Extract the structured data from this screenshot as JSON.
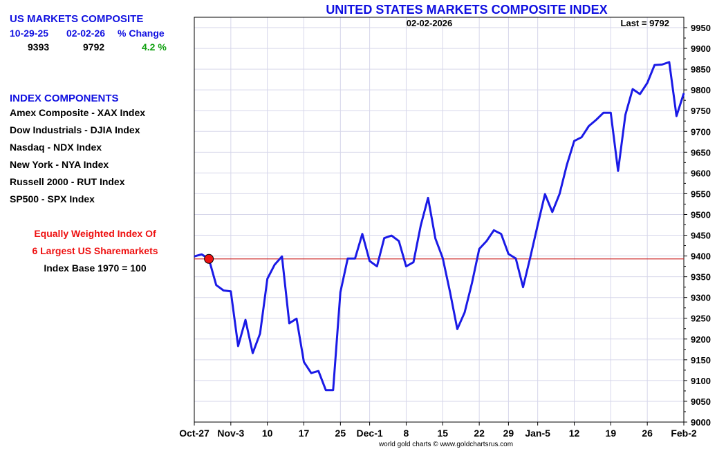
{
  "sidebar": {
    "title": "US MARKETS COMPOSITE",
    "columns": [
      "10-29-25",
      "02-02-26",
      "% Change"
    ],
    "values": [
      "9393",
      "9792",
      "4.2 %"
    ],
    "components_title": "INDEX COMPONENTS",
    "components": [
      "Amex Composite - XAX Index",
      "Dow Industrials - DJIA Index",
      "Nasdaq - NDX Index",
      "New York - NYA Index",
      "Russell 2000 - RUT Index",
      "SP500 - SPX Index"
    ],
    "note_line1": "Equally Weighted Index Of",
    "note_line2": "6 Largest US Sharemarkets",
    "note_line3": "Index Base 1970 = 100"
  },
  "colors": {
    "title_blue": "#1010e0",
    "line_blue": "#1a1ae6",
    "baseline_red": "#cc2222",
    "marker_red": "#ee1111",
    "change_green": "#10a010",
    "grid": "#d6d6ea"
  },
  "chart_data": {
    "type": "line",
    "title": "UNITED STATES MARKETS COMPOSITE INDEX",
    "date_label": "02-02-2026",
    "last_label": "Last = 9792",
    "credit": "world gold charts © www.goldchartsrus.com",
    "ylim": [
      9000,
      9975
    ],
    "y_ticks": [
      9000,
      9050,
      9100,
      9150,
      9200,
      9250,
      9300,
      9350,
      9400,
      9450,
      9500,
      9550,
      9600,
      9650,
      9700,
      9750,
      9800,
      9850,
      9900,
      9950
    ],
    "x_tick_labels": [
      "Oct-27",
      "Nov-3",
      "10",
      "17",
      "25",
      "Dec-1",
      "8",
      "15",
      "22",
      "29",
      "Jan-5",
      "12",
      "19",
      "26",
      "Feb-2"
    ],
    "x_tick_index": [
      0,
      5,
      10,
      15,
      20,
      24,
      29,
      34,
      39,
      43,
      47,
      52,
      57,
      62,
      67
    ],
    "grid": true,
    "baseline_value": 9393,
    "baseline_marker_index": 2,
    "values": [
      9399,
      9404,
      9393,
      9330,
      9317,
      9315,
      9183,
      9246,
      9166,
      9213,
      9345,
      9379,
      9399,
      9238,
      9249,
      9145,
      9118,
      9123,
      9077,
      9077,
      9313,
      9394,
      9394,
      9453,
      9388,
      9375,
      9443,
      9449,
      9436,
      9375,
      9385,
      9474,
      9540,
      9442,
      9395,
      9313,
      9224,
      9264,
      9335,
      9417,
      9436,
      9462,
      9453,
      9405,
      9394,
      9325,
      9398,
      9475,
      9549,
      9506,
      9550,
      9620,
      9677,
      9686,
      9713,
      9728,
      9745,
      9745,
      9605,
      9740,
      9802,
      9790,
      9817,
      9860,
      9861,
      9867,
      9737,
      9792
    ]
  }
}
